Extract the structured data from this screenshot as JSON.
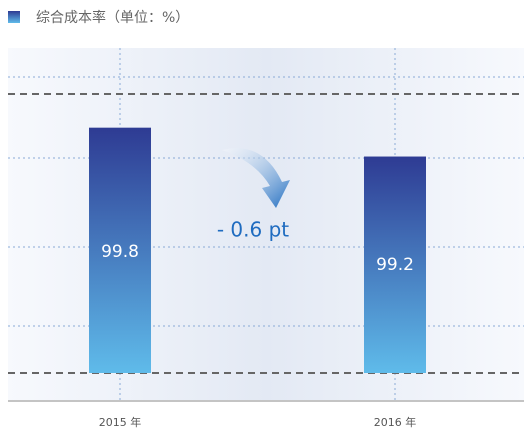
{
  "chart_data": {
    "type": "bar",
    "title": "综合成本率（单位：%）",
    "categories": [
      "2015 年",
      "2016 年"
    ],
    "values": [
      99.8,
      99.2
    ],
    "annotation": "- 0.6 pt",
    "ylim": [
      94.7,
      100.5
    ]
  }
}
